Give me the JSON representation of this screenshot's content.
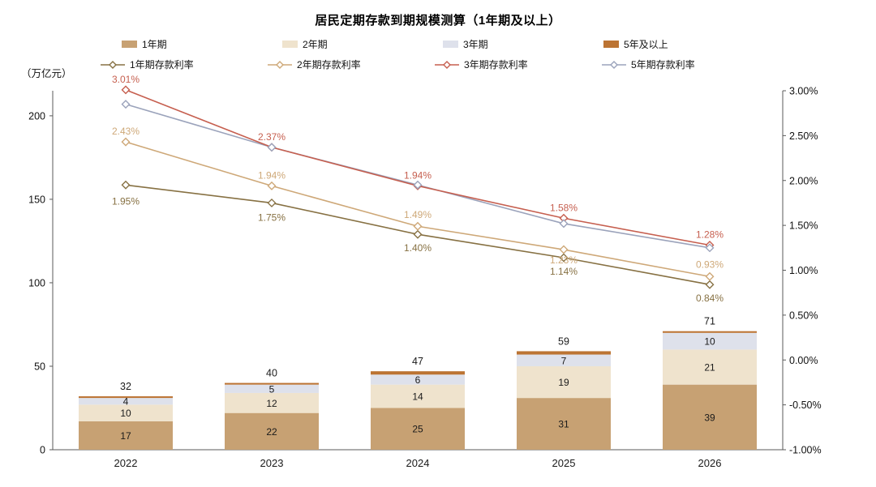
{
  "chart_data": {
    "type": "bar+line",
    "title": "居民定期存款到期规模测算（1年期及以上）",
    "unit_label": "（万亿元）",
    "categories": [
      "2022",
      "2023",
      "2024",
      "2025",
      "2026"
    ],
    "bar_series": [
      {
        "name": "1年期",
        "color": "#C7A173",
        "values": [
          17,
          22,
          25,
          31,
          39
        ]
      },
      {
        "name": "2年期",
        "color": "#EFE3CD",
        "values": [
          10,
          12,
          14,
          19,
          21
        ]
      },
      {
        "name": "3年期",
        "color": "#DEE1EB",
        "values": [
          4,
          5,
          6,
          7,
          10
        ]
      },
      {
        "name": "5年及以上",
        "color": "#BC7433",
        "values": [
          1,
          1,
          2,
          2,
          1
        ]
      }
    ],
    "bar_totals": [
      32,
      40,
      47,
      59,
      71
    ],
    "line_series": [
      {
        "name": "1年期存款利率",
        "color": "#877143",
        "values": [
          1.95,
          1.75,
          1.4,
          1.14,
          0.84
        ],
        "labels": [
          "1.95%",
          "1.75%",
          "1.40%",
          "1.14%",
          "0.84%"
        ]
      },
      {
        "name": "2年期存款利率",
        "color": "#CEA878",
        "values": [
          2.43,
          1.94,
          1.49,
          1.23,
          0.93
        ],
        "labels": [
          "2.43%",
          "1.94%",
          "1.49%",
          "1.23%",
          "0.93%"
        ]
      },
      {
        "name": "3年期存款利率",
        "color": "#C65F4F",
        "values": [
          3.01,
          2.37,
          1.94,
          1.58,
          1.28
        ],
        "labels": [
          "3.01%",
          "2.37%",
          "1.94%",
          "1.58%",
          "1.28%"
        ]
      },
      {
        "name": "5年期存款利率",
        "color": "#9BA3BB",
        "values": [
          2.85,
          2.37,
          1.95,
          1.52,
          1.25
        ],
        "labels": [
          "",
          "",
          "",
          "",
          ""
        ]
      }
    ],
    "left_axis": {
      "ticks": [
        0,
        50,
        100,
        150,
        200
      ],
      "max": 215
    },
    "right_axis": {
      "tick_labels": [
        "3.00%",
        "2.50%",
        "2.00%",
        "1.50%",
        "1.00%",
        "0.50%",
        "0.00%",
        "-0.50%",
        "-1.00%"
      ],
      "min": -1,
      "max": 3,
      "step": 0.5
    },
    "legend_position": "top",
    "grid": false
  }
}
